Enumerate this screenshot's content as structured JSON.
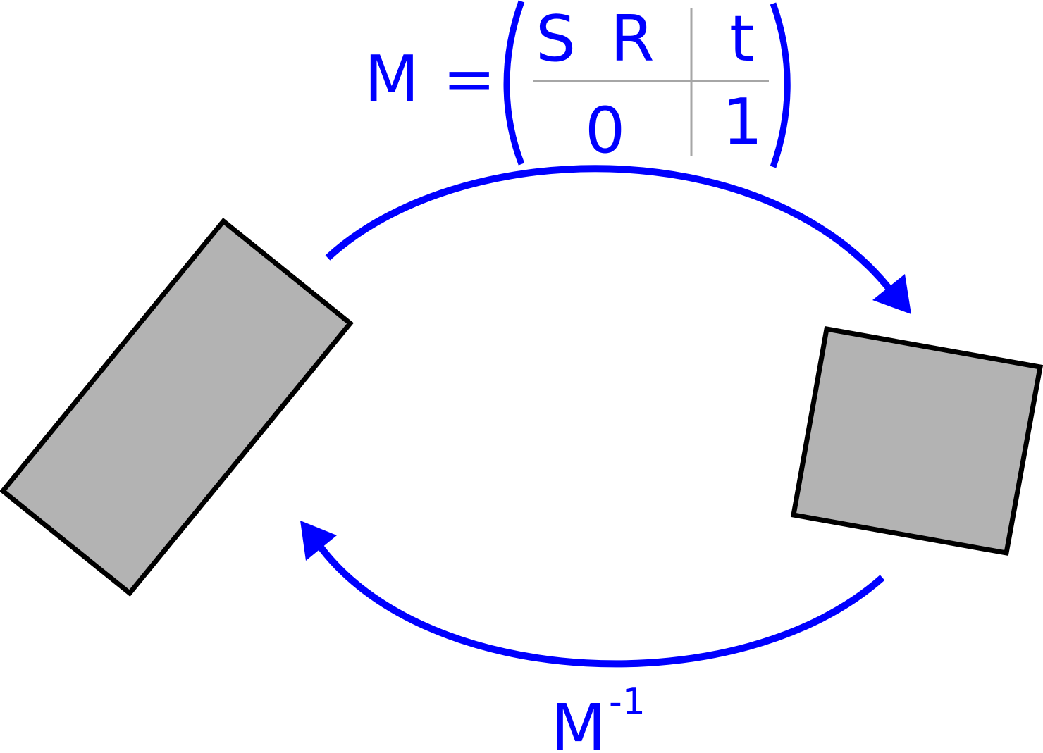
{
  "colors": {
    "accent": "#0000ff",
    "shape_fill": "#b3b3b3",
    "shape_stroke": "#000000",
    "divider": "#a6a6a6",
    "background": "#ffffff"
  },
  "equation": {
    "lhs": "M",
    "equals": "=",
    "matrix": {
      "top_left_1": "S",
      "top_left_2": "R",
      "top_right": "t",
      "bottom_left": "0",
      "bottom_right": "1"
    }
  },
  "inverse_label": {
    "base": "M",
    "superscript": "-1"
  },
  "shapes": {
    "left": "tall-rectangle",
    "right": "square"
  },
  "arrows": {
    "top": "forward-transform",
    "bottom": "inverse-transform"
  }
}
